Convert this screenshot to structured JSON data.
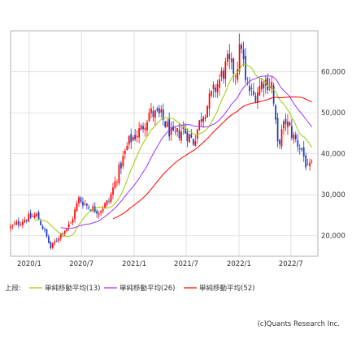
{
  "chart_data": {
    "type": "candlestick",
    "x_ticks": [
      "2020/1",
      "2020/7",
      "2021/1",
      "2021/7",
      "2022/1",
      "2022/7"
    ],
    "y_ticks": [
      "20,000",
      "30,000",
      "40,000",
      "50,000",
      "60,000"
    ],
    "ylim": [
      15000,
      70000
    ],
    "grid": true,
    "colors": {
      "up": "#ff0000",
      "down": "#1a3bbf",
      "ma13": "#99cc00",
      "ma26": "#9933ff",
      "ma52": "#ff0000"
    },
    "legend": {
      "prefix": "上段:",
      "items": [
        {
          "label": "単純移動平均(13)",
          "color": "#99cc00"
        },
        {
          "label": "単純移動平均(26)",
          "color": "#9933ff"
        },
        {
          "label": "単純移動平均(52)",
          "color": "#ff0000"
        }
      ]
    },
    "copyright": "(c)Quants Research Inc.",
    "anchors": [
      [
        "2019-10-28",
        22000
      ],
      [
        "2019-12-16",
        24000
      ],
      [
        "2020-01-27",
        25000
      ],
      [
        "2020-02-24",
        21000
      ],
      [
        "2020-03-16",
        17000
      ],
      [
        "2020-04-20",
        20500
      ],
      [
        "2020-05-25",
        23000
      ],
      [
        "2020-06-22",
        29000
      ],
      [
        "2020-07-27",
        27000
      ],
      [
        "2020-08-31",
        26000
      ],
      [
        "2020-10-05",
        28500
      ],
      [
        "2020-11-09",
        36000
      ],
      [
        "2020-12-14",
        43000
      ],
      [
        "2021-01-25",
        46000
      ],
      [
        "2021-02-22",
        50000
      ],
      [
        "2021-04-05",
        49000
      ],
      [
        "2021-05-17",
        44000
      ],
      [
        "2021-06-21",
        46000
      ],
      [
        "2021-07-26",
        43000
      ],
      [
        "2021-08-23",
        49000
      ],
      [
        "2021-09-27",
        54000
      ],
      [
        "2021-10-25",
        58000
      ],
      [
        "2021-11-22",
        62000
      ],
      [
        "2021-12-20",
        60000
      ],
      [
        "2022-01-10",
        67000
      ],
      [
        "2022-01-24",
        57000
      ],
      [
        "2022-02-21",
        54000
      ],
      [
        "2022-03-28",
        58000
      ],
      [
        "2022-04-25",
        57000
      ],
      [
        "2022-05-16",
        42000
      ],
      [
        "2022-06-13",
        48000
      ],
      [
        "2022-07-11",
        44000
      ],
      [
        "2022-08-08",
        41000
      ],
      [
        "2022-08-29",
        36000
      ],
      [
        "2022-09-12",
        37000
      ]
    ]
  }
}
